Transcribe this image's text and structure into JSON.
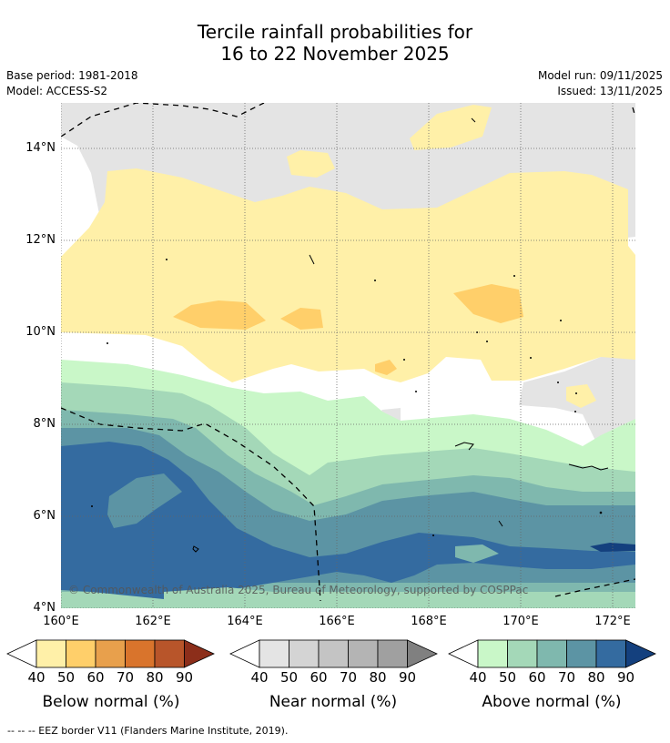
{
  "title": {
    "line1": "Tercile rainfall probabilities for",
    "line2": "16 to 22 November 2025"
  },
  "meta": {
    "base_period": "Base period: 1981-2018",
    "model": "Model: ACCESS-S2",
    "model_run": "Model run: 09/11/2025",
    "issued": "Issued: 13/11/2025"
  },
  "map": {
    "lat_labels": [
      "14°N",
      "12°N",
      "10°N",
      "8°N",
      "6°N",
      "4°N"
    ],
    "lon_labels": [
      "160°E",
      "162°E",
      "164°E",
      "166°E",
      "168°E",
      "170°E",
      "172°E"
    ],
    "credit": "© Commonwealth of Australia 2025, Bureau of Meteorology, supported by COSPPac"
  },
  "legend": {
    "below": {
      "label": "Below normal (%)",
      "ticks": [
        "40",
        "50",
        "60",
        "70",
        "80",
        "90"
      ],
      "colors": [
        "#fff0a8",
        "#ffcf6a",
        "#e8a04c",
        "#d9742c",
        "#b8552a",
        "#8c2e1a"
      ]
    },
    "near": {
      "label": "Near normal (%)",
      "ticks": [
        "40",
        "50",
        "60",
        "70",
        "80",
        "90"
      ],
      "colors": [
        "#e4e4e4",
        "#d4d4d4",
        "#c4c4c4",
        "#b4b4b4",
        "#a0a0a0",
        "#808080"
      ]
    },
    "above": {
      "label": "Above normal (%)",
      "ticks": [
        "40",
        "50",
        "60",
        "70",
        "80",
        "90"
      ],
      "colors": [
        "#c9f7c8",
        "#a4d8b8",
        "#7fb8ae",
        "#5c94a4",
        "#346ba0",
        "#14407e"
      ]
    }
  },
  "footnote": "--  --  -- EEZ border V11 (Flanders Marine Institute, 2019)."
}
